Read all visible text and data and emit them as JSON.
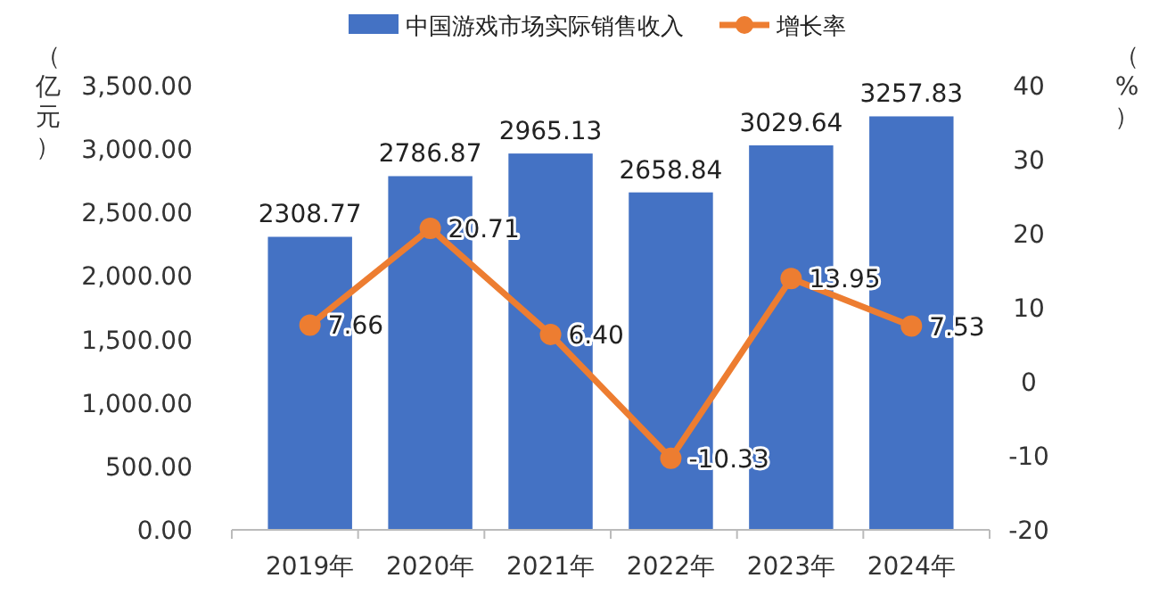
{
  "chart_data": {
    "type": "bar",
    "categories": [
      "2019年",
      "2020年",
      "2021年",
      "2022年",
      "2023年",
      "2024年"
    ],
    "series": [
      {
        "name": "中国游戏市场实际销售收入",
        "color": "#4472c4",
        "values": [
          2308.77,
          2786.87,
          2965.13,
          2658.84,
          3029.64,
          3257.83
        ],
        "value_labels": [
          "2308.77",
          "2786.87",
          "2965.13",
          "2658.84",
          "3029.64",
          "3257.83"
        ]
      },
      {
        "name": "增长率",
        "type": "line",
        "axis": "y2",
        "color": "#ed7d31",
        "marker": "circle",
        "values": [
          7.66,
          20.71,
          6.4,
          -10.33,
          13.95,
          7.53
        ],
        "value_labels": [
          "7.66",
          "20.71",
          "6.40",
          "-10.33",
          "13.95",
          "7.53"
        ]
      }
    ],
    "ylabel": "（亿元）",
    "y2label": "（%）",
    "ylim": [
      0,
      3500
    ],
    "yticks": [
      {
        "value": 0,
        "label": "0.00"
      },
      {
        "value": 500,
        "label": "500.00"
      },
      {
        "value": 1000,
        "label": "1,000.00"
      },
      {
        "value": 1500,
        "label": "1,500.00"
      },
      {
        "value": 2000,
        "label": "2,000.00"
      },
      {
        "value": 2500,
        "label": "2,500.00"
      },
      {
        "value": 3000,
        "label": "3,000.00"
      },
      {
        "value": 3500,
        "label": "3,500.00"
      }
    ],
    "y2lim": [
      -20,
      40
    ],
    "y2ticks": [
      -20,
      -10,
      0,
      10,
      20,
      30,
      40
    ],
    "legend": "top"
  }
}
